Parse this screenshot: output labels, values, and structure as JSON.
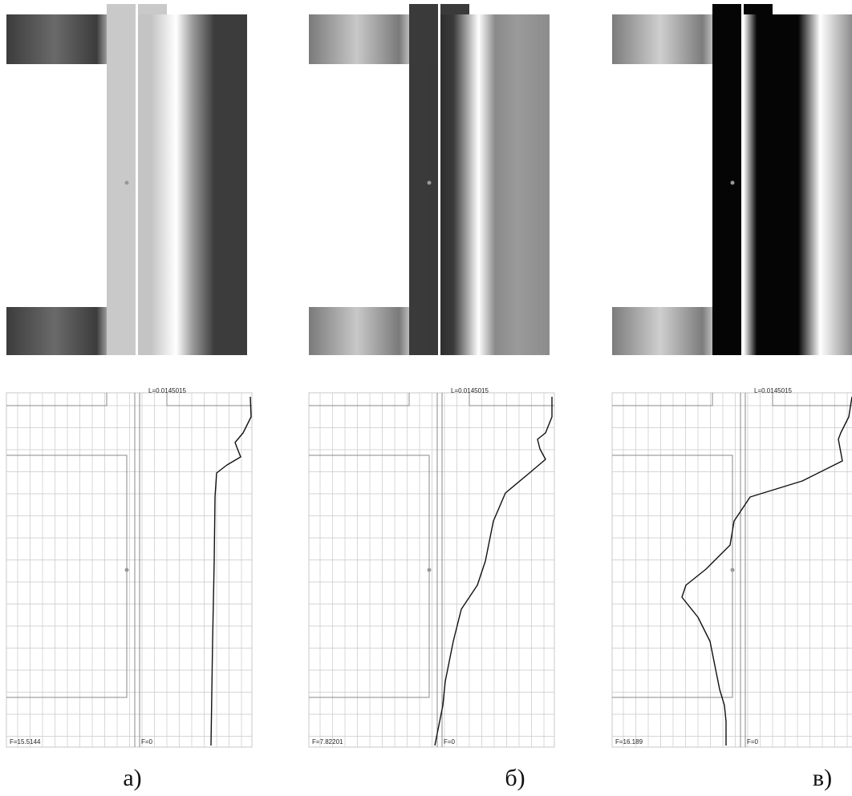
{
  "panels": [
    {
      "label": "а)",
      "length_label": "L=0.0145015",
      "f_left_label": "F=15.5144",
      "f_zero_label": "F=0"
    },
    {
      "label": "б)",
      "length_label": "L=0.0145015",
      "f_left_label": "F=7.82201",
      "f_zero_label": "F=0"
    },
    {
      "label": "в)",
      "length_label": "L=0.0145015",
      "f_left_label": "F=16.189",
      "f_zero_label": "F=0"
    }
  ]
}
